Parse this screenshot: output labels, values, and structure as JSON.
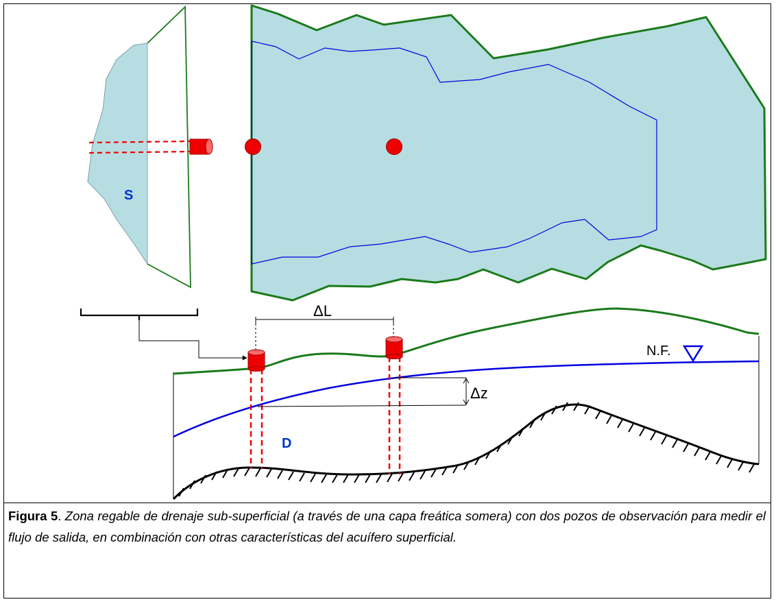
{
  "diagram": {
    "labels": {
      "S": "S",
      "D": "D",
      "delta_L": "ΔL",
      "delta_z": "Δz",
      "water_table": "N.F."
    },
    "colors": {
      "plume_fill": "#b6dde1",
      "outline_green": "#1a7a1a",
      "blue_line": "#0000e0",
      "well_red": "#ee0000",
      "label_blue": "#0033cc"
    }
  },
  "caption": {
    "label": "Figura 5",
    "separator": ". ",
    "text": "Zona regable de drenaje sub-superficial (a través de una capa freática somera) con dos pozos de observación para medir el flujo de salida, en combinación con otras características del acuífero superficial."
  }
}
